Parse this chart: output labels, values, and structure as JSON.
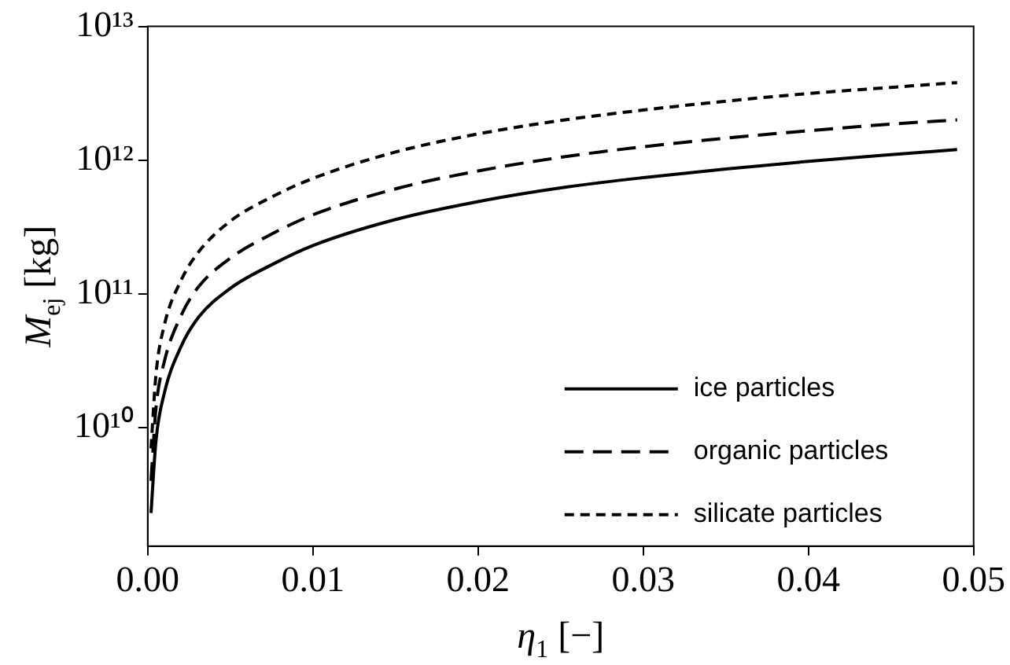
{
  "chart_data": {
    "type": "line",
    "xlabel": "η$_{1}$ [−]",
    "ylabel": "M$_{ej}$ [kg]",
    "log": "y",
    "legend": "bottom right",
    "grid": false,
    "xlim": [
      0,
      0.05
    ],
    "xticks": [
      {
        "value": 0,
        "label": "0.00"
      },
      0.01,
      0.02,
      0.03,
      0.04,
      {
        "value": 0.05,
        "label": "0.05"
      }
    ],
    "ylim": [
      1300000000.0,
      10000000000000.0
    ],
    "yticks": [
      {
        "value": 10000000000.0,
        "label": "10¹⁰"
      },
      {
        "value": 100000000000.0,
        "label": "10¹¹"
      },
      {
        "value": 1000000000000.0,
        "label": "10¹²"
      },
      {
        "value": 10000000000000.0,
        "label": "10¹³"
      }
    ],
    "marker": "none",
    "series": [
      {
        "name": "ice particles",
        "color": "#000000",
        "line_style": "solid",
        "x": [
          0.0002,
          0.0005,
          0.001,
          0.002,
          0.003,
          0.005,
          0.0075,
          0.01,
          0.015,
          0.02,
          0.025,
          0.03,
          0.035,
          0.04,
          0.045,
          0.049
        ],
        "values": [
          2300000000.0,
          8000000000.0,
          18000000000.0,
          40000000000.0,
          65000000000.0,
          110000000000.0,
          165000000000.0,
          230000000000.0,
          360000000000.0,
          490000000000.0,
          620000000000.0,
          740000000000.0,
          860000000000.0,
          980000000000.0,
          1100000000000.0,
          1200000000000.0
        ]
      },
      {
        "name": "organic particles",
        "color": "#000000",
        "line_style": "dashed",
        "x": [
          0.0002,
          0.0005,
          0.001,
          0.002,
          0.003,
          0.005,
          0.0075,
          0.01,
          0.015,
          0.02,
          0.025,
          0.03,
          0.035,
          0.04,
          0.045,
          0.049
        ],
        "values": [
          4000000000.0,
          14000000000.0,
          31000000000.0,
          68000000000.0,
          110000000000.0,
          185000000000.0,
          280000000000.0,
          390000000000.0,
          610000000000.0,
          830000000000.0,
          1050000000000.0,
          1260000000000.0,
          1460000000000.0,
          1660000000000.0,
          1860000000000.0,
          2000000000000.0
        ]
      },
      {
        "name": "silicate particles",
        "color": "#000000",
        "line_style": "dotted",
        "x": [
          0.0002,
          0.0005,
          0.001,
          0.002,
          0.003,
          0.005,
          0.0075,
          0.01,
          0.015,
          0.02,
          0.025,
          0.03,
          0.035,
          0.04,
          0.045,
          0.049
        ],
        "values": [
          7000000000.0,
          25000000000.0,
          58000000000.0,
          125000000000.0,
          200000000000.0,
          350000000000.0,
          530000000000.0,
          730000000000.0,
          1150000000000.0,
          1570000000000.0,
          1980000000000.0,
          2370000000000.0,
          2760000000000.0,
          3150000000000.0,
          3500000000000.0,
          3800000000000.0
        ]
      }
    ]
  }
}
